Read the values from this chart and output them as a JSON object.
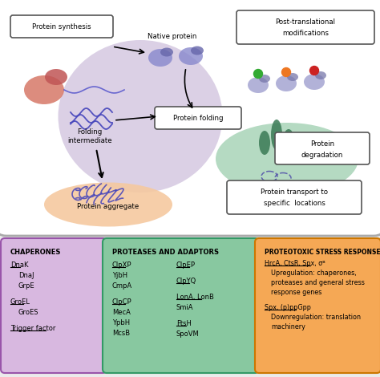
{
  "bg_color": "#ebebeb",
  "cell_bg": "#ffffff",
  "cell_border": "#aaaaaa",
  "purple_circle_color": "#c8b8d8",
  "orange_ellipse_color": "#f5c9a0",
  "green_ellipse_color": "#a8d4b8",
  "box_title_chaperones": "CHAPERONES",
  "box_title_proteases": "PROTEASES AND ADAPTORS",
  "box_title_stress": "PROTEOTOXIC STRESS RESPONSE",
  "chaperones_lines": [
    {
      "text": "DnaK",
      "underline": true,
      "indent": 0
    },
    {
      "text": "DnaJ",
      "underline": false,
      "indent": 10
    },
    {
      "text": "GrpE",
      "underline": false,
      "indent": 10
    },
    {
      "text": "",
      "underline": false,
      "indent": 0
    },
    {
      "text": "GroEL",
      "underline": true,
      "indent": 0
    },
    {
      "text": "GroES",
      "underline": false,
      "indent": 10
    },
    {
      "text": "",
      "underline": false,
      "indent": 0
    },
    {
      "text": "Trigger factor",
      "underline": true,
      "indent": 0
    }
  ],
  "proteases_col1": [
    {
      "text": "ClpXP",
      "underline": true
    },
    {
      "text": "YjbH",
      "underline": false
    },
    {
      "text": "CmpA",
      "underline": false
    },
    {
      "text": "",
      "underline": false
    },
    {
      "text": "ClpCP",
      "underline": true
    },
    {
      "text": "MecA",
      "underline": false
    },
    {
      "text": "YpbH",
      "underline": false
    },
    {
      "text": "McsB",
      "underline": false
    }
  ],
  "proteases_col2": [
    {
      "text": "ClpEP",
      "underline": true
    },
    {
      "text": "",
      "underline": false
    },
    {
      "text": "ClpYQ",
      "underline": true
    },
    {
      "text": "",
      "underline": false
    },
    {
      "text": "LonA, LonB",
      "underline": true
    },
    {
      "text": "SmiA",
      "underline": false
    },
    {
      "text": "",
      "underline": false
    },
    {
      "text": "FtsH",
      "underline": true
    },
    {
      "text": "SpoVM",
      "underline": false
    }
  ],
  "stress_lines": [
    {
      "text": "HrcA, CtsR, Spx, σᴮ",
      "underline": true,
      "indent": 0
    },
    {
      "text": "Upregulation: chaperones,",
      "underline": false,
      "indent": 8
    },
    {
      "text": "proteases and general stress",
      "underline": false,
      "indent": 8
    },
    {
      "text": "response genes",
      "underline": false,
      "indent": 8
    },
    {
      "text": "",
      "underline": false,
      "indent": 0
    },
    {
      "text": "Spx, (p)ppGpp",
      "underline": true,
      "indent": 0
    },
    {
      "text": "Downregulation: translation",
      "underline": false,
      "indent": 8
    },
    {
      "text": "machinery",
      "underline": false,
      "indent": 8
    }
  ]
}
